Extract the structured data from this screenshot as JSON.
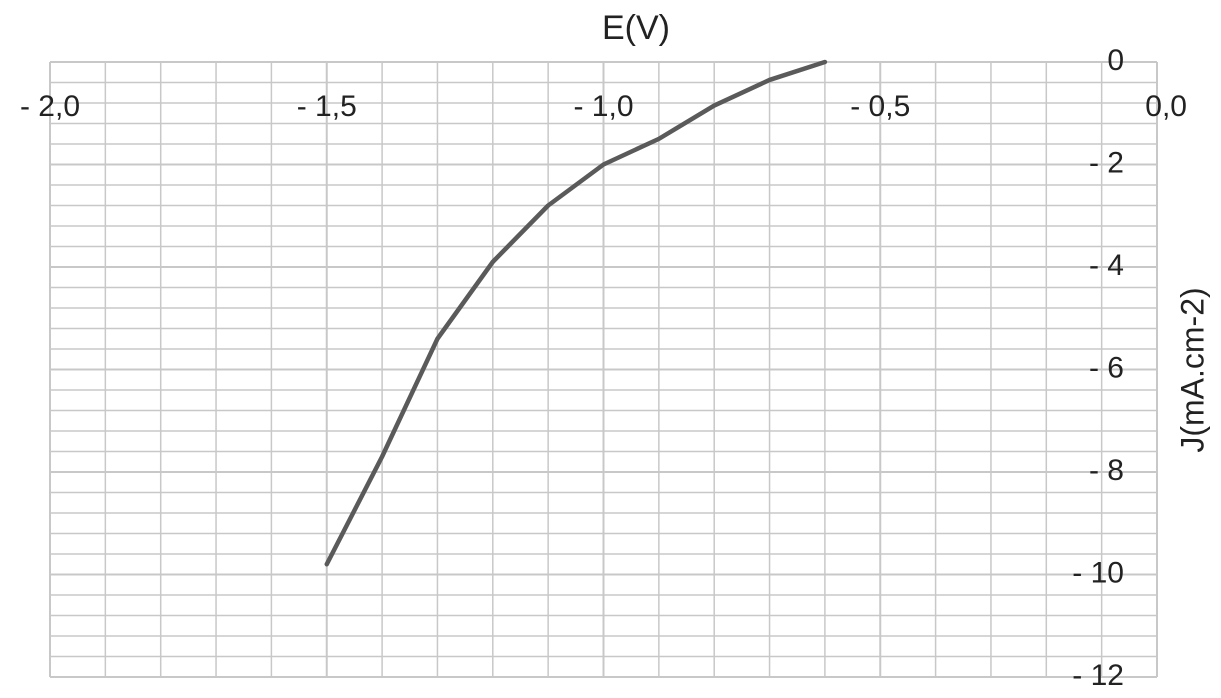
{
  "chart_data": {
    "type": "line",
    "title": "E(V)",
    "y_label": "J(mA.cm-2)",
    "x": [
      -1.5,
      -1.4,
      -1.3,
      -1.2,
      -1.1,
      -1.0,
      -0.9,
      -0.8,
      -0.7,
      -0.6
    ],
    "series": [
      {
        "name": "J",
        "color": "#5a5a5a",
        "values": [
          -9.8,
          -7.7,
          -5.4,
          -3.9,
          -2.8,
          -2.0,
          -1.5,
          -0.85,
          -0.35,
          0
        ]
      }
    ],
    "xlim": [
      -2.0,
      0.0
    ],
    "ylim": [
      -12,
      0
    ],
    "xticks": [
      {
        "value": -2.0,
        "label": "- 2,0"
      },
      {
        "value": -1.5,
        "label": "- 1,5"
      },
      {
        "value": -1.0,
        "label": "- 1,0"
      },
      {
        "value": -0.5,
        "label": "- 0,5"
      },
      {
        "value": 0.0,
        "label": "0,0"
      }
    ],
    "yticks": [
      {
        "value": 0,
        "label": "0"
      },
      {
        "value": -2,
        "label": "- 2"
      },
      {
        "value": -4,
        "label": "- 4"
      },
      {
        "value": -6,
        "label": "- 6"
      },
      {
        "value": -8,
        "label": "- 8"
      },
      {
        "value": -10,
        "label": "- 10"
      },
      {
        "value": -12,
        "label": "- 12"
      }
    ],
    "grid": true,
    "minor_divisions": 5
  }
}
